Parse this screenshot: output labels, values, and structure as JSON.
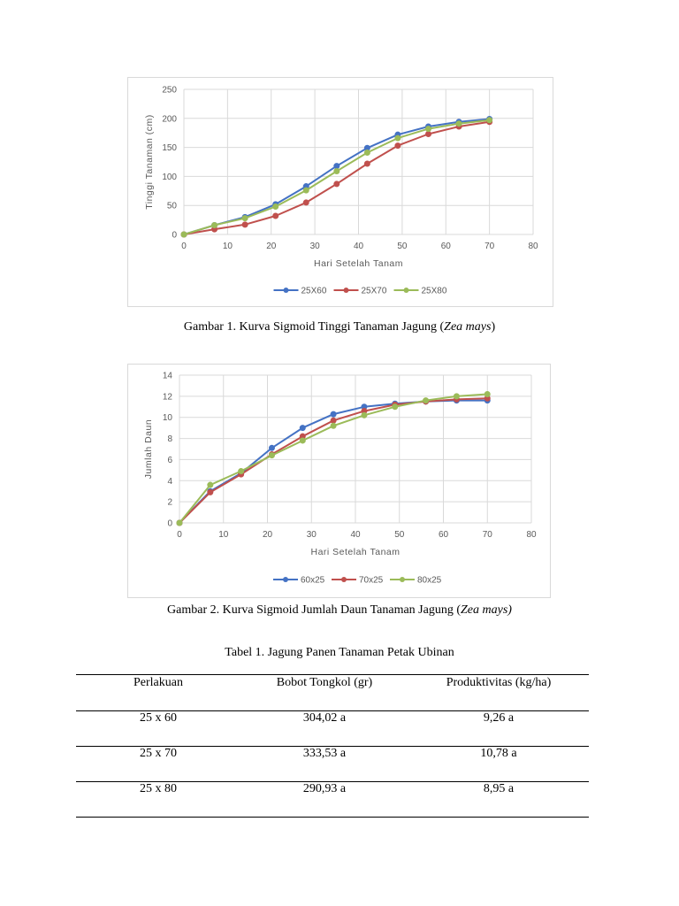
{
  "chart_data": [
    {
      "type": "line",
      "title": "",
      "xlabel": "Hari Setelah Tanam",
      "ylabel": "Tinggi Tanaman (cm)",
      "xlim": [
        0,
        80
      ],
      "ylim": [
        0,
        250
      ],
      "x_ticks": [
        0,
        10,
        20,
        30,
        40,
        50,
        60,
        70,
        80
      ],
      "y_ticks": [
        0,
        50,
        100,
        150,
        200,
        250
      ],
      "grid": true,
      "legend_position": "bottom",
      "x": [
        0,
        7,
        14,
        21,
        28,
        35,
        42,
        49,
        56,
        63,
        70
      ],
      "series": [
        {
          "name": "25X60",
          "color": "#4472c4",
          "values": [
            0,
            16,
            30,
            52,
            83,
            118,
            149,
            172,
            186,
            194,
            199
          ]
        },
        {
          "name": "25X70",
          "color": "#c0504d",
          "values": [
            0,
            9,
            17,
            32,
            55,
            87,
            122,
            153,
            173,
            186,
            194
          ]
        },
        {
          "name": "25X80",
          "color": "#9bbb59",
          "values": [
            0,
            16,
            28,
            48,
            76,
            109,
            141,
            166,
            182,
            191,
            197
          ]
        }
      ]
    },
    {
      "type": "line",
      "title": "",
      "xlabel": "Hari Setelah Tanam",
      "ylabel": "Jumlah Daun",
      "xlim": [
        0,
        80
      ],
      "ylim": [
        0,
        14
      ],
      "x_ticks": [
        0,
        10,
        20,
        30,
        40,
        50,
        60,
        70,
        80
      ],
      "y_ticks": [
        0,
        2,
        4,
        6,
        8,
        10,
        12,
        14
      ],
      "grid": true,
      "legend_position": "bottom",
      "x": [
        0,
        7,
        14,
        21,
        28,
        35,
        42,
        49,
        56,
        63,
        70
      ],
      "series": [
        {
          "name": "60x25",
          "color": "#4472c4",
          "values": [
            0,
            3.0,
            4.7,
            7.1,
            9.0,
            10.3,
            11.0,
            11.3,
            11.5,
            11.6,
            11.6
          ]
        },
        {
          "name": "70x25",
          "color": "#c0504d",
          "values": [
            0,
            2.9,
            4.6,
            6.5,
            8.2,
            9.7,
            10.6,
            11.2,
            11.5,
            11.7,
            11.8
          ]
        },
        {
          "name": "80x25",
          "color": "#9bbb59",
          "values": [
            0,
            3.6,
            4.9,
            6.4,
            7.8,
            9.2,
            10.2,
            11.0,
            11.6,
            12.0,
            12.2
          ]
        }
      ]
    }
  ],
  "captions": {
    "fig1_main": "Gambar 1. Kurva Sigmoid Tinggi Tanaman Jagung (",
    "fig1_italic": "Zea mays",
    "fig1_end": ")",
    "fig2_main": "Gambar 2. Kurva Sigmoid Jumlah Daun Tanaman Jagung (",
    "fig2_italic": "Zea mays)",
    "table_title": "Tabel 1. Jagung Panen Tanaman Petak Ubinan"
  },
  "table": {
    "headers": [
      "Perlakuan",
      "Bobot Tongkol (gr)",
      "Produktivitas (kg/ha)"
    ],
    "rows": [
      [
        "25 x 60",
        "304,02 a",
        "9,26 a"
      ],
      [
        "25 x 70",
        "333,53 a",
        "10,78 a"
      ],
      [
        "25 x 80",
        "290,93 a",
        "8,95 a"
      ]
    ]
  }
}
